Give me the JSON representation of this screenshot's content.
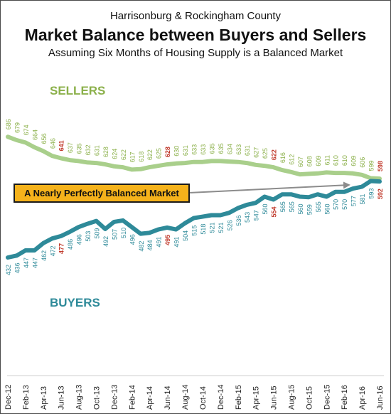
{
  "header": {
    "subtitle1": "Harrisonburg & Rockingham County",
    "title": "Market Balance between Buyers and Sellers",
    "subtitle2": "Assuming Six Months of Housing Supply is a Balanced Market"
  },
  "chart_data": {
    "type": "line",
    "title": "Market Balance between Buyers and Sellers",
    "x_tick_labels": [
      "Dec-12",
      "Feb-13",
      "Apr-13",
      "Jun-13",
      "Aug-13",
      "Oct-13",
      "Dec-13",
      "Feb-14",
      "Apr-14",
      "Jun-14",
      "Aug-14",
      "Oct-14",
      "Dec-14",
      "Feb-15",
      "Apr-15",
      "Jun-15",
      "Aug-15",
      "Oct-15",
      "Dec-15",
      "Feb-16",
      "Apr-16",
      "Jun-16"
    ],
    "months": [
      "Dec-12",
      "Jan-13",
      "Feb-13",
      "Mar-13",
      "Apr-13",
      "May-13",
      "Jun-13",
      "Jul-13",
      "Aug-13",
      "Sep-13",
      "Oct-13",
      "Nov-13",
      "Dec-13",
      "Jan-14",
      "Feb-14",
      "Mar-14",
      "Apr-14",
      "May-14",
      "Jun-14",
      "Jul-14",
      "Aug-14",
      "Sep-14",
      "Oct-14",
      "Nov-14",
      "Dec-14",
      "Jan-15",
      "Feb-15",
      "Mar-15",
      "Apr-15",
      "May-15",
      "Jun-15",
      "Jul-15",
      "Aug-15",
      "Sep-15",
      "Oct-15",
      "Nov-15",
      "Dec-15",
      "Jan-16",
      "Feb-16",
      "Mar-16",
      "Apr-16",
      "May-16",
      "Jun-16"
    ],
    "y_axis_range": [
      420,
      700
    ],
    "grid": false,
    "colors": {
      "sellers": "#a9cf8b",
      "sellers_label": "#8bb04a",
      "buyers": "#2e8a99",
      "buyers_label": "#2e8a99",
      "highlight": "#c0392b",
      "annotation_fill": "#f5b21b",
      "arrow": "#8c8c8c"
    },
    "series": [
      {
        "name": "SELLERS",
        "label_position": "above",
        "values": [
          686,
          679,
          674,
          664,
          656,
          646,
          641,
          637,
          635,
          632,
          631,
          628,
          624,
          622,
          617,
          618,
          622,
          625,
          628,
          630,
          631,
          633,
          633,
          635,
          635,
          634,
          633,
          631,
          627,
          625,
          622,
          616,
          612,
          607,
          608,
          609,
          611,
          610,
          610,
          609,
          606,
          599,
          598
        ],
        "highlight_indices": [
          6,
          18,
          30,
          42
        ]
      },
      {
        "name": "BUYERS",
        "label_position": "below",
        "values": [
          432,
          436,
          447,
          447,
          462,
          472,
          477,
          486,
          496,
          503,
          509,
          492,
          507,
          510,
          496,
          482,
          484,
          491,
          495,
          491,
          504,
          515,
          518,
          521,
          521,
          526,
          536,
          543,
          547,
          560,
          554,
          565,
          565,
          560,
          559,
          565,
          560,
          570,
          570,
          577,
          581,
          593,
          592
        ],
        "highlight_indices": [
          6,
          18,
          30,
          42
        ]
      }
    ],
    "annotations": [
      {
        "text": "A Nearly Perfectly Balanced Market"
      }
    ],
    "legend": "none"
  }
}
